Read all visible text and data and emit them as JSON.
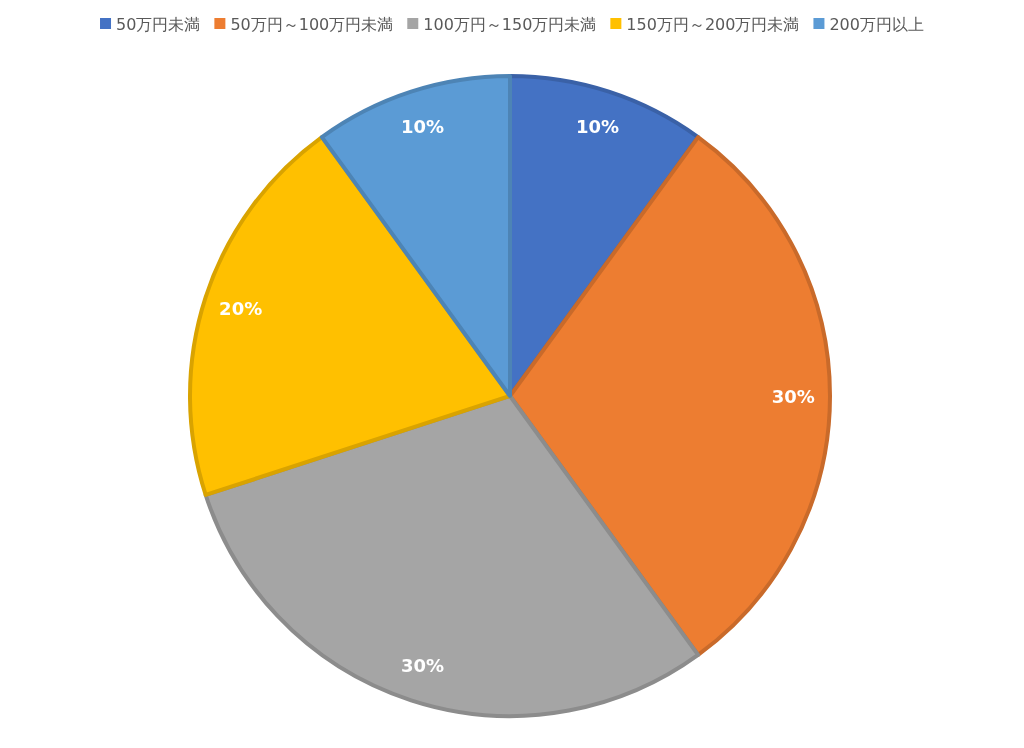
{
  "chart_data": {
    "type": "pie",
    "categories": [
      "50万円未満",
      "50万円～100万円未満",
      "100万円～150万円未満",
      "150万円～200万円未満",
      "200万円以上"
    ],
    "values": [
      10,
      30,
      30,
      20,
      10
    ],
    "colors": [
      "#4472c4",
      "#ed7d31",
      "#a5a5a5",
      "#ffc000",
      "#5b9bd5"
    ],
    "value_labels": [
      "10%",
      "30%",
      "30%",
      "20%",
      "10%"
    ],
    "legend": "top"
  }
}
